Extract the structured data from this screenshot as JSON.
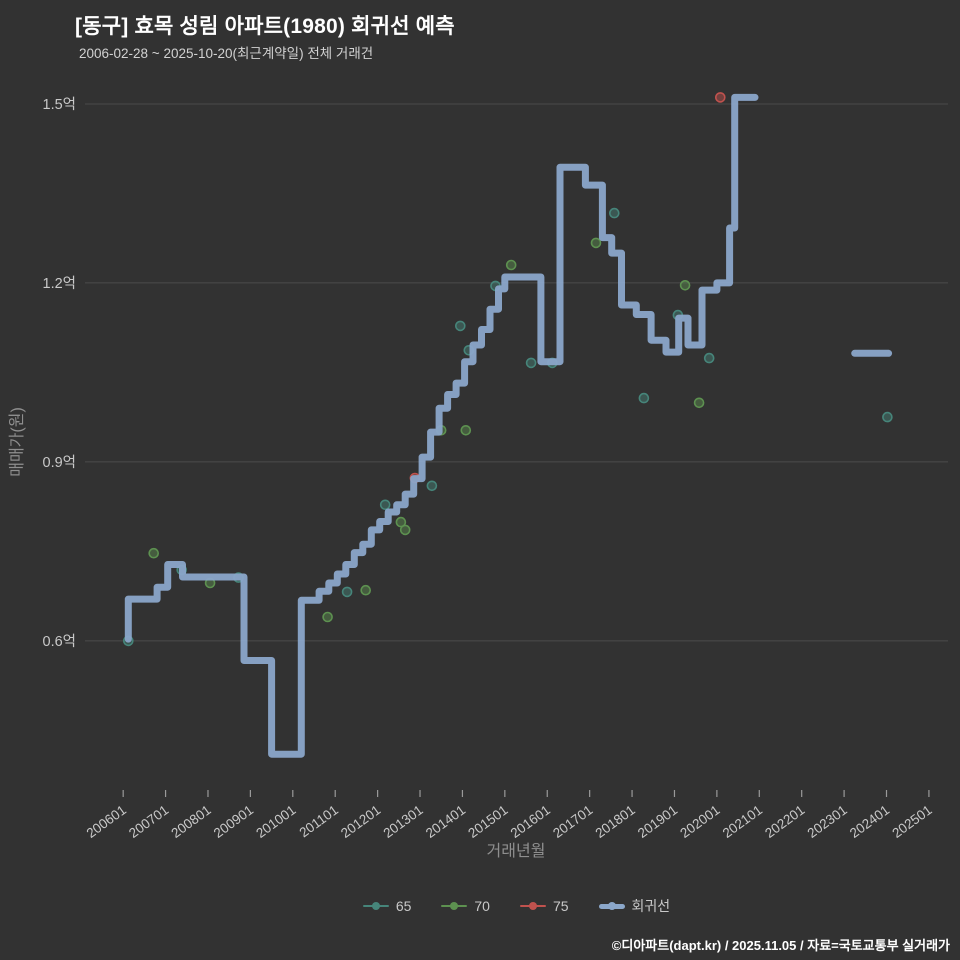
{
  "title": "[동구] 효목 성림 아파트(1980) 회귀선 예측",
  "subtitle": "2006-02-28 ~ 2025-10-20(최근계약일) 전체 거래건",
  "footer": "©디아파트(dapt.kr) / 2025.11.05 / 자료=국토교통부 실거래가",
  "colors": {
    "background": "#323232",
    "grid": "#4b4b4b",
    "tick_mark": "#9a9a9a",
    "tick_label": "#c9c9c9",
    "axis_title": "#8f8f8f",
    "title": "#ffffff",
    "subtitle": "#d2d2d2",
    "footer": "#ffffff",
    "series_65": "#46857a",
    "series_70": "#5d9150",
    "series_75": "#c0524e",
    "regression": "#8ba7ca"
  },
  "chart_data": {
    "type": "line",
    "title": "[동구] 효목 성림 아파트(1980) 회귀선 예측",
    "subtitle": "2006-02-28 ~ 2025-10-20(최근계약일) 전체 거래건",
    "xlabel": "거래년월",
    "ylabel": "매매가(원)",
    "unit": "억원",
    "grid": "horizontal",
    "legend_position": "bottom-center",
    "xlim": [
      2005.1,
      2025.45
    ],
    "ylim": [
      0.35,
      1.515
    ],
    "y_ticks": [
      {
        "v": 0.6,
        "label": "0.6억"
      },
      {
        "v": 0.9,
        "label": "0.9억"
      },
      {
        "v": 1.2,
        "label": "1.2억"
      },
      {
        "v": 1.5,
        "label": "1.5억"
      }
    ],
    "x_ticks": [
      {
        "v": 2006,
        "label": "200601"
      },
      {
        "v": 2007,
        "label": "200701"
      },
      {
        "v": 2008,
        "label": "200801"
      },
      {
        "v": 2009,
        "label": "200901"
      },
      {
        "v": 2010,
        "label": "201001"
      },
      {
        "v": 2011,
        "label": "201101"
      },
      {
        "v": 2012,
        "label": "201201"
      },
      {
        "v": 2013,
        "label": "201301"
      },
      {
        "v": 2014,
        "label": "201401"
      },
      {
        "v": 2015,
        "label": "201501"
      },
      {
        "v": 2016,
        "label": "201601"
      },
      {
        "v": 2017,
        "label": "201701"
      },
      {
        "v": 2018,
        "label": "201801"
      },
      {
        "v": 2019,
        "label": "201901"
      },
      {
        "v": 2020,
        "label": "202001"
      },
      {
        "v": 2021,
        "label": "202101"
      },
      {
        "v": 2022,
        "label": "202201"
      },
      {
        "v": 2023,
        "label": "202301"
      },
      {
        "v": 2024,
        "label": "202401"
      },
      {
        "v": 2025,
        "label": "202501"
      }
    ],
    "series": [
      {
        "name": "65",
        "type": "scatter",
        "color": "#46857a",
        "points": [
          [
            2006.12,
            0.6
          ],
          [
            2007.38,
            0.719
          ],
          [
            2008.72,
            0.706
          ],
          [
            2011.28,
            0.682
          ],
          [
            2012.18,
            0.828
          ],
          [
            2013.28,
            0.86
          ],
          [
            2013.95,
            1.128
          ],
          [
            2014.15,
            1.087
          ],
          [
            2014.78,
            1.195
          ],
          [
            2015.62,
            1.066
          ],
          [
            2016.12,
            1.066
          ],
          [
            2017.58,
            1.317
          ],
          [
            2018.28,
            1.007
          ],
          [
            2019.08,
            1.146
          ],
          [
            2019.82,
            1.074
          ],
          [
            2024.02,
            0.975
          ]
        ]
      },
      {
        "name": "70",
        "type": "scatter",
        "color": "#5d9150",
        "points": [
          [
            2006.72,
            0.747
          ],
          [
            2008.05,
            0.697
          ],
          [
            2010.82,
            0.64
          ],
          [
            2011.72,
            0.685
          ],
          [
            2012.55,
            0.799
          ],
          [
            2012.65,
            0.786
          ],
          [
            2013.5,
            0.953
          ],
          [
            2014.08,
            0.953
          ],
          [
            2015.15,
            1.23
          ],
          [
            2017.15,
            1.267
          ],
          [
            2019.25,
            1.196
          ],
          [
            2019.58,
            0.999
          ]
        ]
      },
      {
        "name": "75",
        "type": "scatter",
        "color": "#c0524e",
        "points": [
          [
            2012.88,
            0.873
          ],
          [
            2020.08,
            1.511
          ]
        ]
      },
      {
        "name": "회귀선",
        "type": "step-line",
        "color": "#8ba7ca",
        "width": 7,
        "segments": [
          [
            [
              2006.12,
              0.603
            ],
            [
              2006.12,
              0.67
            ],
            [
              2006.8,
              0.67
            ],
            [
              2006.8,
              0.69
            ],
            [
              2007.05,
              0.69
            ],
            [
              2007.05,
              0.728
            ],
            [
              2007.4,
              0.728
            ],
            [
              2007.4,
              0.707
            ],
            [
              2008.85,
              0.707
            ],
            [
              2008.85,
              0.567
            ],
            [
              2009.5,
              0.567
            ],
            [
              2009.5,
              0.41
            ],
            [
              2010.2,
              0.41
            ],
            [
              2010.2,
              0.668
            ],
            [
              2010.62,
              0.668
            ],
            [
              2010.62,
              0.683
            ],
            [
              2010.85,
              0.683
            ],
            [
              2010.85,
              0.697
            ],
            [
              2011.05,
              0.697
            ],
            [
              2011.05,
              0.712
            ],
            [
              2011.25,
              0.712
            ],
            [
              2011.25,
              0.728
            ],
            [
              2011.45,
              0.728
            ],
            [
              2011.45,
              0.748
            ],
            [
              2011.65,
              0.748
            ],
            [
              2011.65,
              0.762
            ],
            [
              2011.85,
              0.762
            ],
            [
              2011.85,
              0.786
            ],
            [
              2012.05,
              0.786
            ],
            [
              2012.05,
              0.8
            ],
            [
              2012.25,
              0.8
            ],
            [
              2012.25,
              0.816
            ],
            [
              2012.45,
              0.816
            ],
            [
              2012.45,
              0.828
            ],
            [
              2012.65,
              0.828
            ],
            [
              2012.65,
              0.846
            ],
            [
              2012.85,
              0.846
            ],
            [
              2012.85,
              0.872
            ],
            [
              2013.05,
              0.872
            ],
            [
              2013.05,
              0.908
            ],
            [
              2013.25,
              0.908
            ],
            [
              2013.25,
              0.95
            ],
            [
              2013.45,
              0.95
            ],
            [
              2013.45,
              0.99
            ],
            [
              2013.65,
              0.99
            ],
            [
              2013.65,
              1.013
            ],
            [
              2013.85,
              1.013
            ],
            [
              2013.85,
              1.032
            ],
            [
              2014.05,
              1.032
            ],
            [
              2014.05,
              1.068
            ],
            [
              2014.25,
              1.068
            ],
            [
              2014.25,
              1.096
            ],
            [
              2014.45,
              1.096
            ],
            [
              2014.45,
              1.122
            ],
            [
              2014.65,
              1.122
            ],
            [
              2014.65,
              1.156
            ],
            [
              2014.85,
              1.156
            ],
            [
              2014.85,
              1.19
            ],
            [
              2015.0,
              1.19
            ],
            [
              2015.0,
              1.21
            ],
            [
              2015.85,
              1.21
            ],
            [
              2015.85,
              1.068
            ],
            [
              2016.3,
              1.068
            ],
            [
              2016.3,
              1.394
            ],
            [
              2016.9,
              1.394
            ],
            [
              2016.9,
              1.364
            ],
            [
              2017.3,
              1.364
            ],
            [
              2017.3,
              1.276
            ],
            [
              2017.52,
              1.276
            ],
            [
              2017.52,
              1.25
            ],
            [
              2017.75,
              1.25
            ],
            [
              2017.75,
              1.163
            ],
            [
              2018.1,
              1.163
            ],
            [
              2018.1,
              1.147
            ],
            [
              2018.45,
              1.147
            ],
            [
              2018.45,
              1.104
            ],
            [
              2018.8,
              1.104
            ],
            [
              2018.8,
              1.084
            ],
            [
              2019.1,
              1.084
            ],
            [
              2019.1,
              1.141
            ],
            [
              2019.32,
              1.141
            ],
            [
              2019.32,
              1.096
            ],
            [
              2019.65,
              1.096
            ],
            [
              2019.65,
              1.188
            ],
            [
              2020.0,
              1.188
            ],
            [
              2020.0,
              1.2
            ],
            [
              2020.3,
              1.2
            ],
            [
              2020.3,
              1.292
            ],
            [
              2020.42,
              1.292
            ],
            [
              2020.42,
              1.511
            ],
            [
              2020.9,
              1.511
            ]
          ],
          [
            [
              2023.25,
              1.082
            ],
            [
              2024.05,
              1.082
            ]
          ]
        ]
      }
    ]
  }
}
